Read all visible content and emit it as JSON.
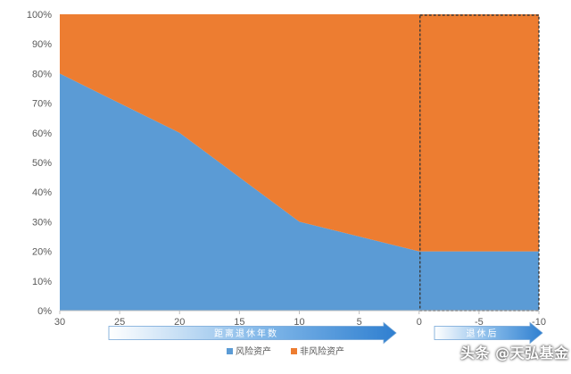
{
  "chart_data": {
    "type": "area",
    "stacked": true,
    "normalized": true,
    "x": [
      30,
      25,
      20,
      15,
      10,
      5,
      0,
      -5,
      -10
    ],
    "x_tick_labels": [
      "30",
      "25",
      "20",
      "15",
      "10",
      "5",
      "0",
      "-5",
      "-10"
    ],
    "xlim": [
      30,
      -10
    ],
    "ylim": [
      0,
      100
    ],
    "y_ticks": [
      0,
      10,
      20,
      30,
      40,
      50,
      60,
      70,
      80,
      90,
      100
    ],
    "y_tick_labels": [
      "0%",
      "10%",
      "20%",
      "30%",
      "40%",
      "50%",
      "60%",
      "70%",
      "80%",
      "90%",
      "100%"
    ],
    "series": [
      {
        "name": "风险资产",
        "color": "#5b9bd5",
        "values": [
          80,
          70,
          60,
          45,
          30,
          25,
          20,
          20,
          20
        ]
      },
      {
        "name": "非风险资产",
        "color": "#ed7d31",
        "values": [
          20,
          30,
          40,
          55,
          70,
          75,
          80,
          80,
          80
        ]
      }
    ],
    "highlight_range": [
      0,
      -10
    ],
    "arrow_labels": [
      "距离退休年数",
      "退休后"
    ],
    "legend_position": "bottom",
    "grid": false
  },
  "watermark": "头条 @天弘基金"
}
